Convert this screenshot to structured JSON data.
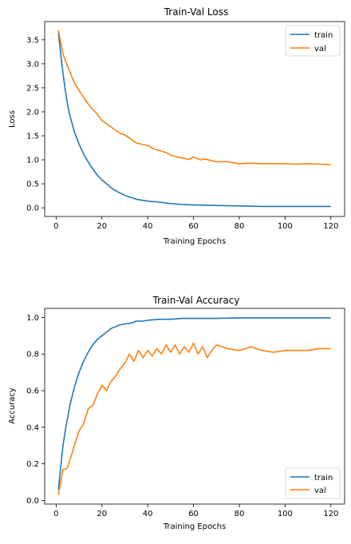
{
  "chart_data": [
    {
      "type": "line",
      "title": "Train-Val Loss",
      "xlabel": "Training Epochs",
      "ylabel": "Loss",
      "xlim": [
        -5,
        126
      ],
      "ylim": [
        -0.18,
        3.88
      ],
      "xticks": [
        0,
        20,
        40,
        60,
        80,
        100,
        120
      ],
      "yticks": [
        0.0,
        0.5,
        1.0,
        1.5,
        2.0,
        2.5,
        3.0,
        3.5
      ],
      "xtick_labels": [
        "0",
        "20",
        "40",
        "60",
        "80",
        "100",
        "120"
      ],
      "ytick_labels": [
        "0.0",
        "0.5",
        "1.0",
        "1.5",
        "2.0",
        "2.5",
        "3.0",
        "3.5"
      ],
      "grid": false,
      "legend_position": "top-right",
      "series": [
        {
          "name": "train",
          "color": "#1f77b4",
          "x": [
            1,
            2,
            3,
            4,
            5,
            6,
            8,
            10,
            12,
            15,
            18,
            20,
            25,
            30,
            35,
            40,
            45,
            50,
            55,
            60,
            70,
            80,
            90,
            100,
            110,
            120
          ],
          "y": [
            3.65,
            3.2,
            2.8,
            2.45,
            2.15,
            1.92,
            1.58,
            1.33,
            1.12,
            0.88,
            0.68,
            0.58,
            0.38,
            0.26,
            0.18,
            0.14,
            0.12,
            0.09,
            0.07,
            0.06,
            0.05,
            0.04,
            0.03,
            0.03,
            0.03,
            0.03
          ]
        },
        {
          "name": "val",
          "color": "#ff7f0e",
          "x": [
            1,
            3,
            5,
            8,
            10,
            12,
            15,
            18,
            20,
            22,
            25,
            28,
            30,
            33,
            35,
            38,
            40,
            43,
            45,
            48,
            50,
            53,
            55,
            58,
            60,
            63,
            65,
            68,
            70,
            75,
            80,
            85,
            90,
            95,
            100,
            105,
            110,
            115,
            120
          ],
          "y": [
            3.7,
            3.2,
            2.95,
            2.6,
            2.45,
            2.3,
            2.1,
            1.95,
            1.82,
            1.75,
            1.65,
            1.55,
            1.52,
            1.42,
            1.35,
            1.32,
            1.3,
            1.22,
            1.2,
            1.15,
            1.1,
            1.06,
            1.04,
            1.01,
            1.06,
            1.0,
            1.02,
            0.98,
            0.96,
            0.96,
            0.92,
            0.93,
            0.92,
            0.92,
            0.92,
            0.91,
            0.92,
            0.91,
            0.9
          ]
        }
      ]
    },
    {
      "type": "line",
      "title": "Train-Val Accuracy",
      "xlabel": "Training Epochs",
      "ylabel": "Accuracy",
      "xlim": [
        -5,
        126
      ],
      "ylim": [
        -0.02,
        1.05
      ],
      "xticks": [
        0,
        20,
        40,
        60,
        80,
        100,
        120
      ],
      "yticks": [
        0.0,
        0.2,
        0.4,
        0.6,
        0.8,
        1.0
      ],
      "xtick_labels": [
        "0",
        "20",
        "40",
        "60",
        "80",
        "100",
        "120"
      ],
      "ytick_labels": [
        "0.0",
        "0.2",
        "0.4",
        "0.6",
        "0.8",
        "1.0"
      ],
      "grid": false,
      "legend_position": "bottom-right",
      "series": [
        {
          "name": "train",
          "color": "#1f77b4",
          "x": [
            1,
            2,
            3,
            4,
            5,
            6,
            8,
            10,
            12,
            14,
            16,
            18,
            20,
            22,
            24,
            26,
            28,
            30,
            33,
            35,
            38,
            40,
            45,
            50,
            55,
            60,
            70,
            80,
            90,
            100,
            110,
            120
          ],
          "y": [
            0.06,
            0.18,
            0.3,
            0.38,
            0.45,
            0.52,
            0.62,
            0.7,
            0.76,
            0.81,
            0.85,
            0.88,
            0.9,
            0.92,
            0.94,
            0.95,
            0.96,
            0.965,
            0.97,
            0.98,
            0.98,
            0.985,
            0.99,
            0.99,
            0.995,
            0.995,
            0.995,
            0.998,
            0.998,
            0.998,
            0.998,
            0.998
          ]
        },
        {
          "name": "val",
          "color": "#ff7f0e",
          "x": [
            1,
            2,
            3,
            4,
            5,
            6,
            8,
            10,
            12,
            14,
            16,
            18,
            20,
            22,
            24,
            26,
            28,
            30,
            32,
            34,
            36,
            38,
            40,
            42,
            44,
            46,
            48,
            50,
            52,
            54,
            56,
            58,
            60,
            62,
            64,
            66,
            68,
            70,
            75,
            80,
            85,
            90,
            95,
            100,
            105,
            110,
            115,
            120
          ],
          "y": [
            0.03,
            0.1,
            0.17,
            0.17,
            0.18,
            0.22,
            0.3,
            0.38,
            0.42,
            0.5,
            0.52,
            0.58,
            0.63,
            0.6,
            0.65,
            0.68,
            0.72,
            0.75,
            0.8,
            0.76,
            0.82,
            0.78,
            0.82,
            0.79,
            0.83,
            0.8,
            0.85,
            0.81,
            0.85,
            0.8,
            0.84,
            0.81,
            0.86,
            0.8,
            0.84,
            0.78,
            0.82,
            0.85,
            0.83,
            0.82,
            0.84,
            0.82,
            0.81,
            0.82,
            0.82,
            0.82,
            0.83,
            0.83
          ]
        }
      ]
    }
  ]
}
